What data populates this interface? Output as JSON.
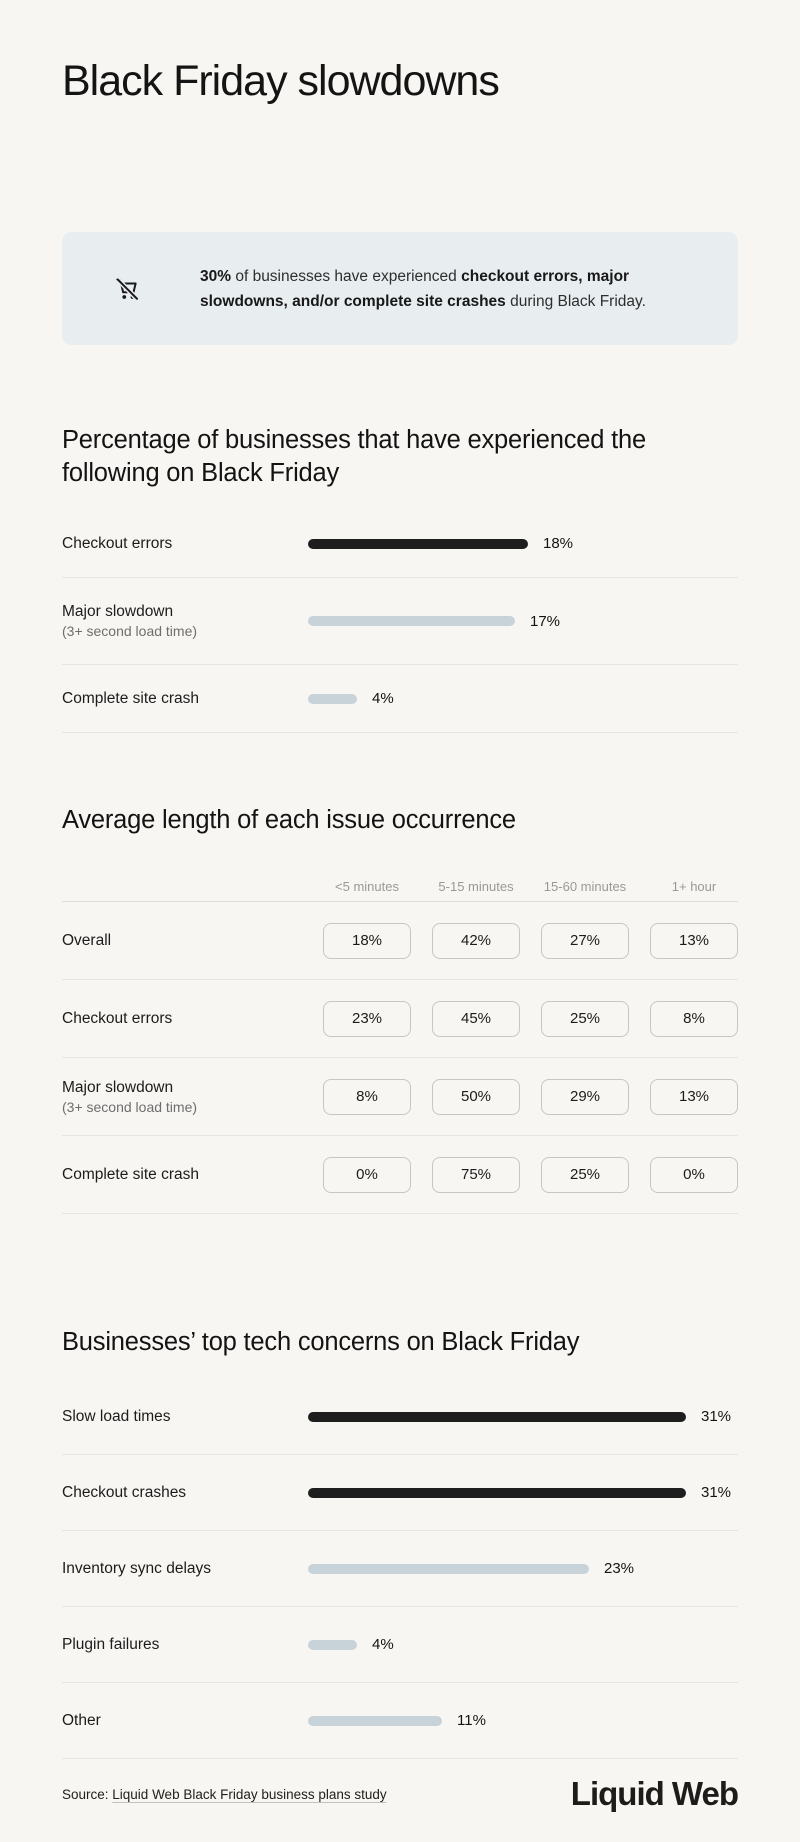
{
  "page": {
    "title": "Black Friday slowdowns",
    "background": "#f7f6f2"
  },
  "callout": {
    "icon": "cart-off-icon",
    "text_parts": [
      {
        "text": "30%",
        "bold": true
      },
      {
        "text": " of businesses have experienced ",
        "bold": false
      },
      {
        "text": "checkout errors, major slowdowns, and/or complete site crashes",
        "bold": true
      },
      {
        "text": " during Black Friday.",
        "bold": false
      }
    ]
  },
  "section_experienced": {
    "heading": "Percentage of businesses that have experienced the following on Black Friday",
    "rows": [
      {
        "label": "Checkout errors",
        "sublabel": "",
        "value": 18,
        "display": "18%",
        "emphasis": true
      },
      {
        "label": "Major slowdown",
        "sublabel": "(3+ second load time)",
        "value": 17,
        "display": "17%",
        "emphasis": false
      },
      {
        "label": "Complete site crash",
        "sublabel": "",
        "value": 4,
        "display": "4%",
        "emphasis": false
      }
    ]
  },
  "section_duration": {
    "heading": "Average length of each issue occurrence",
    "columns": [
      "<5 minutes",
      "5-15 minutes",
      "15-60 minutes",
      "1+ hour"
    ],
    "rows": [
      {
        "label": "Overall",
        "sublabel": "",
        "values": [
          "18%",
          "42%",
          "27%",
          "13%"
        ]
      },
      {
        "label": "Checkout errors",
        "sublabel": "",
        "values": [
          "23%",
          "45%",
          "25%",
          "8%"
        ]
      },
      {
        "label": "Major slowdown",
        "sublabel": "(3+ second load time)",
        "values": [
          "8%",
          "50%",
          "29%",
          "13%"
        ]
      },
      {
        "label": "Complete site crash",
        "sublabel": "",
        "values": [
          "0%",
          "75%",
          "25%",
          "0%"
        ]
      }
    ]
  },
  "section_concerns": {
    "heading": "Businesses’ top tech concerns on Black Friday",
    "rows": [
      {
        "label": "Slow load times",
        "value": 31,
        "display": "31%",
        "emphasis": true
      },
      {
        "label": "Checkout crashes",
        "value": 31,
        "display": "31%",
        "emphasis": true
      },
      {
        "label": "Inventory sync delays",
        "value": 23,
        "display": "23%",
        "emphasis": false
      },
      {
        "label": "Plugin failures",
        "value": 4,
        "display": "4%",
        "emphasis": false
      },
      {
        "label": "Other",
        "value": 11,
        "display": "11%",
        "emphasis": false
      }
    ]
  },
  "footer": {
    "source_prefix": "Source: ",
    "source_link": "Liquid Web Black Friday business plans study",
    "logo": "Liquid Web"
  },
  "colors": {
    "bar_dark": "#1e1e1e",
    "bar_light": "#c8d3d9",
    "callout_bg": "#e8edf0"
  },
  "chart_data": [
    {
      "type": "bar",
      "orientation": "horizontal",
      "title": "Percentage of businesses that have experienced the following on Black Friday",
      "categories": [
        "Checkout errors",
        "Major slowdown (3+ second load time)",
        "Complete site crash"
      ],
      "values": [
        18,
        17,
        4
      ],
      "unit": "%",
      "highlighted_categories": [
        "Checkout errors"
      ]
    },
    {
      "type": "table",
      "title": "Average length of each issue occurrence",
      "columns": [
        "<5 minutes",
        "5-15 minutes",
        "15-60 minutes",
        "1+ hour"
      ],
      "rows": [
        {
          "label": "Overall",
          "values": [
            18,
            42,
            27,
            13
          ]
        },
        {
          "label": "Checkout errors",
          "values": [
            23,
            45,
            25,
            8
          ]
        },
        {
          "label": "Major slowdown (3+ second load time)",
          "values": [
            8,
            50,
            29,
            13
          ]
        },
        {
          "label": "Complete site crash",
          "values": [
            0,
            75,
            25,
            0
          ]
        }
      ],
      "unit": "%"
    },
    {
      "type": "bar",
      "orientation": "horizontal",
      "title": "Businesses’ top tech concerns on Black Friday",
      "categories": [
        "Slow load times",
        "Checkout crashes",
        "Inventory sync delays",
        "Plugin failures",
        "Other"
      ],
      "values": [
        31,
        31,
        23,
        4,
        11
      ],
      "unit": "%",
      "highlighted_categories": [
        "Slow load times",
        "Checkout crashes"
      ]
    }
  ]
}
